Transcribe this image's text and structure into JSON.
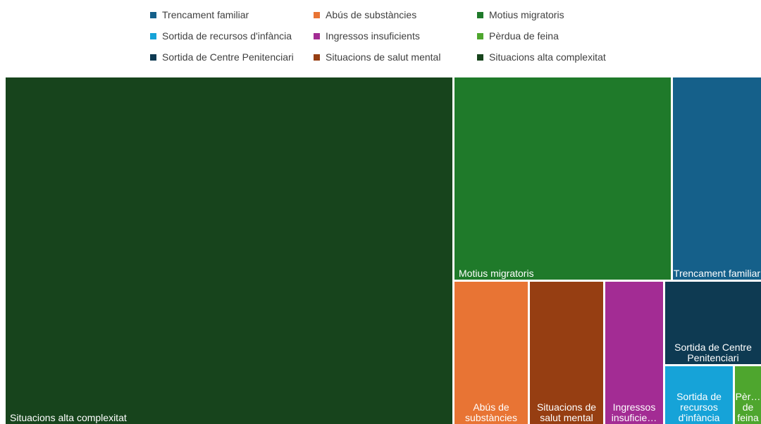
{
  "chart_data": {
    "type": "treemap",
    "legend": [
      {
        "label": "Trencament familiar",
        "color": "#15608a"
      },
      {
        "label": "Abús de substàncies",
        "color": "#e87434"
      },
      {
        "label": "Motius migratoris",
        "color": "#1f7a2a"
      },
      {
        "label": "Sortida de recursos d'infància",
        "color": "#16a3d8"
      },
      {
        "label": "Ingressos insuficients",
        "color": "#a32c94"
      },
      {
        "label": "Pèrdua de feina",
        "color": "#4ea62e"
      },
      {
        "label": "Sortida de Centre Penitenciari",
        "color": "#0e3a52"
      },
      {
        "label": "Situacions de salut mental",
        "color": "#963e12"
      },
      {
        "label": "Situacions alta complexitat",
        "color": "#17441c"
      }
    ],
    "tiles": [
      {
        "label": "Situacions alta complexitat",
        "label_lines": [
          "Situacions alta complexitat"
        ],
        "color": "#17441c",
        "value": 51.8
      },
      {
        "label": "Motius migratoris",
        "label_lines": [
          "Motius migratoris"
        ],
        "color": "#1f7a2a",
        "value": 12.3
      },
      {
        "label": "Trencament familiar",
        "label_lines": [
          "Trencament familiar"
        ],
        "color": "#15608a",
        "value": 5.2
      },
      {
        "label": "Abús de substàncies",
        "label_lines": [
          "Abús de",
          "substàncies"
        ],
        "color": "#e87434",
        "value": 3.5
      },
      {
        "label": "Situacions de salut mental",
        "label_lines": [
          "Situacions de",
          "salut mental"
        ],
        "color": "#963e12",
        "value": 3.4
      },
      {
        "label": "Ingressos insuficients",
        "label_lines": [
          "Ingressos",
          "insuficie…"
        ],
        "color": "#a32c94",
        "value": 2.7
      },
      {
        "label": "Sortida de Centre Penitenciari",
        "label_lines": [
          "Sortida de Centre",
          "Penitenciari"
        ],
        "color": "#0e3a52",
        "value": 2.1
      },
      {
        "label": "Sortida de recursos d'infància",
        "label_lines": [
          "Sortida de",
          "recursos",
          "d'infància"
        ],
        "color": "#16a3d8",
        "value": 1.5
      },
      {
        "label": "Pèrdua de feina",
        "label_lines": [
          "Pèr…",
          "de",
          "feina"
        ],
        "color": "#4ea62e",
        "value": 0.6
      }
    ]
  }
}
